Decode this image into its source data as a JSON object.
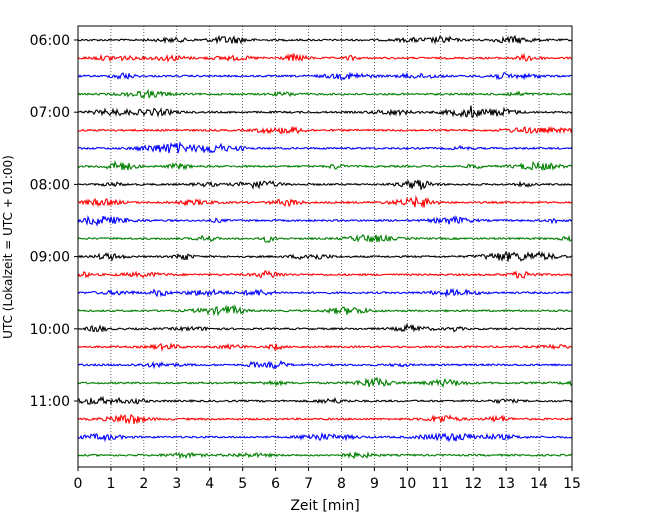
{
  "chart_data": {
    "type": "line",
    "title": "",
    "xlabel": "Zeit  [min]",
    "ylabel": "UTC (Lokalzeit = UTC + 01:00)",
    "xlim": [
      0,
      15
    ],
    "x_ticks": [
      "0",
      "1",
      "2",
      "3",
      "4",
      "5",
      "6",
      "7",
      "8",
      "9",
      "10",
      "11",
      "12",
      "13",
      "14",
      "15"
    ],
    "y_tick_labels": [
      "06:00",
      "07:00",
      "08:00",
      "09:00",
      "10:00",
      "11:00"
    ],
    "grid": "vertical dotted lines at each minute",
    "trace_interval_minutes": 15,
    "trace_colors": [
      "#000000",
      "#ff0000",
      "#0000ff",
      "#008000"
    ],
    "series": [
      {
        "start": "06:00",
        "color": "#000000"
      },
      {
        "start": "06:15",
        "color": "#ff0000"
      },
      {
        "start": "06:30",
        "color": "#0000ff"
      },
      {
        "start": "06:45",
        "color": "#008000"
      },
      {
        "start": "07:00",
        "color": "#000000"
      },
      {
        "start": "07:15",
        "color": "#ff0000"
      },
      {
        "start": "07:30",
        "color": "#0000ff"
      },
      {
        "start": "07:45",
        "color": "#008000"
      },
      {
        "start": "08:00",
        "color": "#000000"
      },
      {
        "start": "08:15",
        "color": "#ff0000"
      },
      {
        "start": "08:30",
        "color": "#0000ff"
      },
      {
        "start": "08:45",
        "color": "#008000"
      },
      {
        "start": "09:00",
        "color": "#000000"
      },
      {
        "start": "09:15",
        "color": "#ff0000"
      },
      {
        "start": "09:30",
        "color": "#0000ff"
      },
      {
        "start": "09:45",
        "color": "#008000"
      },
      {
        "start": "10:00",
        "color": "#000000"
      },
      {
        "start": "10:15",
        "color": "#ff0000"
      },
      {
        "start": "10:30",
        "color": "#0000ff"
      },
      {
        "start": "10:45",
        "color": "#008000"
      },
      {
        "start": "11:00",
        "color": "#000000"
      },
      {
        "start": "11:15",
        "color": "#ff0000"
      },
      {
        "start": "11:30",
        "color": "#0000ff"
      },
      {
        "start": "11:45",
        "color": "#008000"
      }
    ]
  }
}
